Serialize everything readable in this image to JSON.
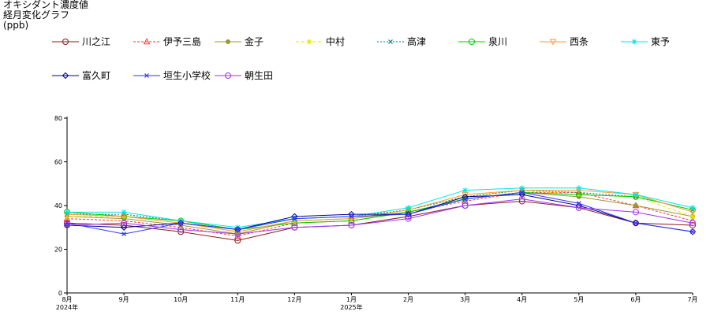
{
  "header": {
    "title_line1": "オキシダント濃度値",
    "title_line2": "経月変化グラフ",
    "unit": "(ppb)"
  },
  "chart_data": {
    "type": "line",
    "title": "オキシダント濃度値 経月変化グラフ",
    "ylabel": "(ppb)",
    "ylim": [
      0,
      80
    ],
    "yticks": [
      0,
      20,
      40,
      60,
      80
    ],
    "categories": [
      "8月",
      "9月",
      "10月",
      "11月",
      "12月",
      "1月",
      "2月",
      "3月",
      "4月",
      "5月",
      "6月",
      "7月"
    ],
    "x_sub_labels": [
      "2024年",
      "",
      "",
      "",
      "",
      "2025年",
      "",
      "",
      "",
      "",
      "",
      ""
    ],
    "grid": false,
    "legend_position": "top",
    "series": [
      {
        "name": "川之江",
        "color": "#8b1a1a",
        "marker": "circle",
        "values": [
          32,
          31,
          28,
          24,
          30,
          31,
          35,
          40,
          42,
          39,
          32,
          31
        ]
      },
      {
        "name": "伊予三島",
        "color": "#ff3333",
        "marker": "triangle",
        "dash": "3,2",
        "values": [
          34,
          33,
          30,
          26,
          32,
          33,
          37,
          42,
          46,
          46,
          40,
          33
        ]
      },
      {
        "name": "金子",
        "color": "#999933",
        "marker": "dot",
        "values": [
          35,
          34,
          31,
          27,
          33,
          34,
          37,
          43,
          46,
          44,
          40,
          35
        ]
      },
      {
        "name": "中村",
        "color": "#e6e600",
        "marker": "star",
        "dash": "4,3",
        "values": [
          35,
          35,
          32,
          28,
          33,
          34,
          38,
          44,
          47,
          45,
          44,
          35
        ]
      },
      {
        "name": "高津",
        "color": "#007f7f",
        "marker": "x",
        "dash": "2,2",
        "values": [
          36,
          36,
          33,
          29,
          34,
          35,
          38,
          44,
          47,
          46,
          44,
          38
        ]
      },
      {
        "name": "泉川",
        "color": "#00cc00",
        "marker": "circle",
        "values": [
          37,
          35,
          33,
          29,
          32,
          33,
          37,
          43,
          46,
          45,
          44,
          38
        ]
      },
      {
        "name": "西条",
        "color": "#ff9933",
        "marker": "triangle-down",
        "values": [
          36,
          35,
          32,
          28,
          33,
          34,
          38,
          45,
          47,
          47,
          45,
          37
        ]
      },
      {
        "name": "東予",
        "color": "#00e6e6",
        "marker": "star",
        "values": [
          37,
          37,
          33,
          30,
          34,
          35,
          39,
          47,
          48,
          48,
          45,
          39
        ]
      },
      {
        "name": "富久町",
        "color": "#000099",
        "marker": "diamond",
        "values": [
          31,
          30,
          32,
          29,
          35,
          36,
          36,
          44,
          45,
          40,
          32,
          28
        ]
      },
      {
        "name": "垣生小学校",
        "color": "#3333ff",
        "marker": "x",
        "values": [
          32,
          27,
          32,
          29,
          34,
          35,
          36,
          43,
          46,
          41,
          32,
          28
        ]
      },
      {
        "name": "朝生田",
        "color": "#9933ff",
        "marker": "circle",
        "values": [
          31,
          32,
          29,
          27,
          30,
          31,
          34,
          40,
          43,
          39,
          37,
          32
        ]
      }
    ]
  }
}
